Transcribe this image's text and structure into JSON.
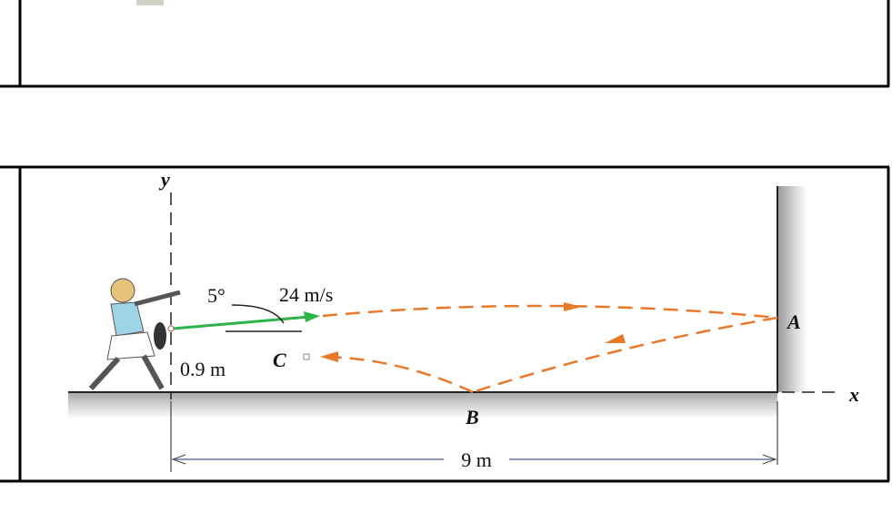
{
  "labels": {
    "y_axis": "y",
    "angle": "5°",
    "speed": "24 m/s",
    "point_a": "A",
    "height": "0.9 m",
    "point_c": "C",
    "point_b": "B",
    "x_axis": "x",
    "distance": "9 m"
  }
}
